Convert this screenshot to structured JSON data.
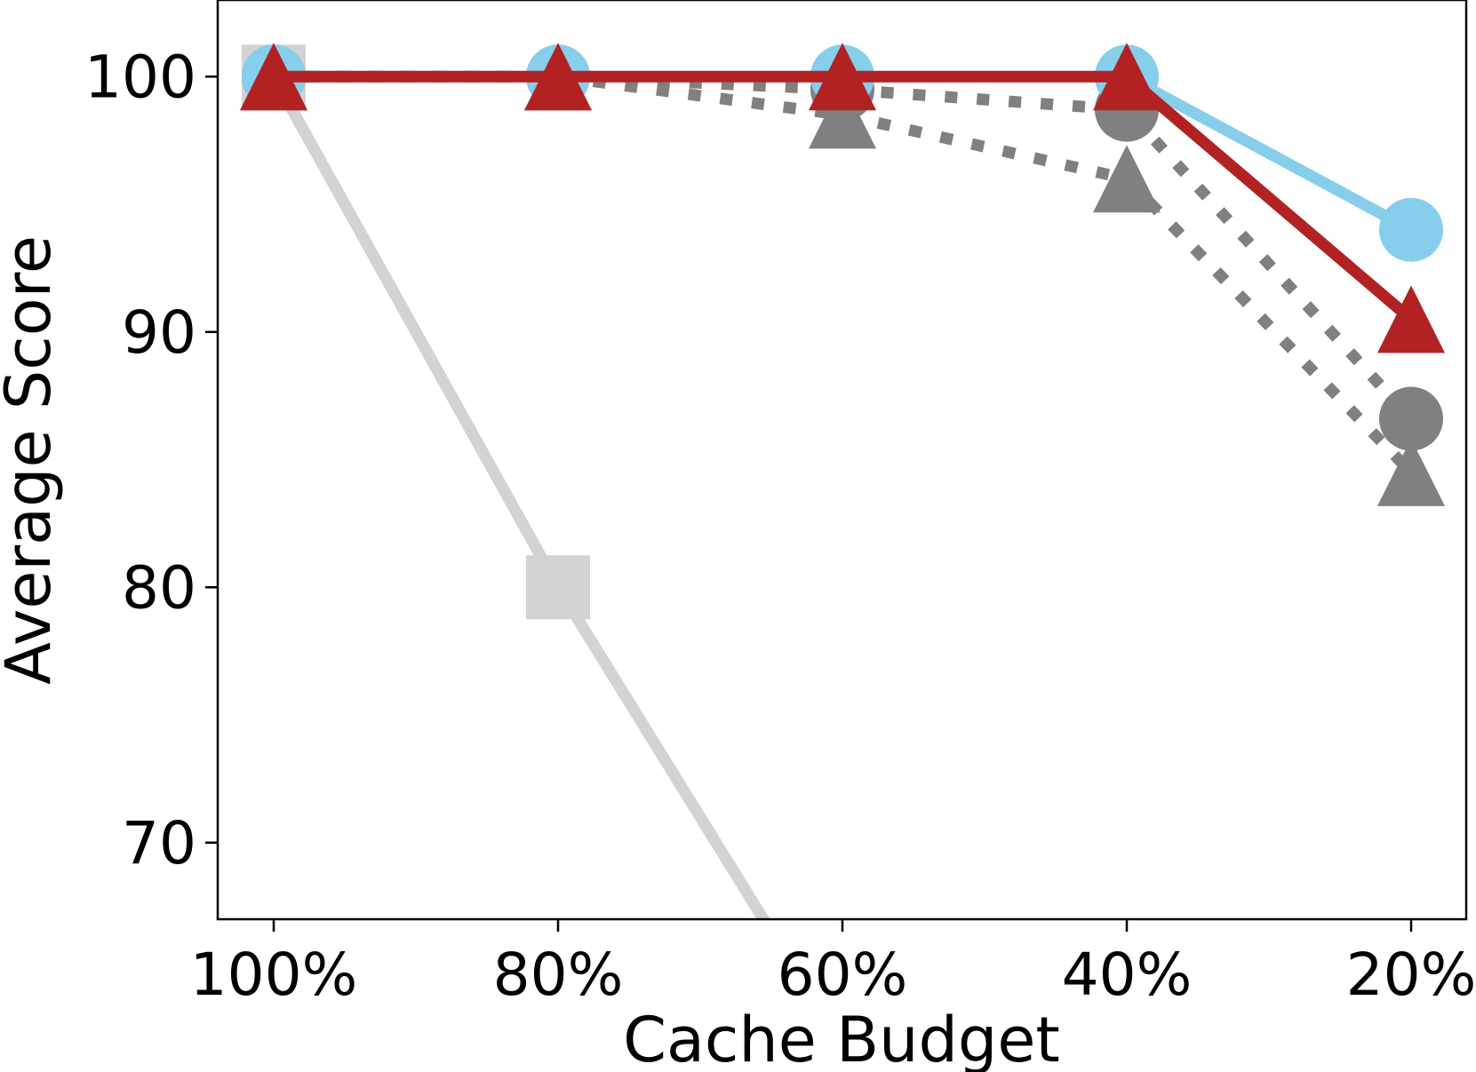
{
  "chart_data": {
    "type": "line",
    "title": "",
    "xlabel": "Cache Budget",
    "ylabel": "Average Score",
    "categories": [
      "100%",
      "80%",
      "60%",
      "40%",
      "20%"
    ],
    "ylim": [
      67,
      103
    ],
    "yticks": [
      70,
      80,
      90,
      100
    ],
    "grid": false,
    "legend": "none",
    "series": [
      {
        "values": [
          100,
          80,
          62,
          null,
          null
        ],
        "color": "#d3d3d3",
        "marker": "square",
        "linestyle": "solid"
      },
      {
        "values": [
          100,
          100,
          99.5,
          98.7,
          86.6
        ],
        "color": "#808080",
        "marker": "circle",
        "linestyle": "dotted"
      },
      {
        "values": [
          100,
          100,
          98.5,
          96.0,
          84.5
        ],
        "color": "#808080",
        "marker": "triangle",
        "linestyle": "dotted"
      },
      {
        "values": [
          100,
          100,
          100,
          100,
          94.0
        ],
        "color": "#87ceeb",
        "marker": "circle",
        "linestyle": "solid"
      },
      {
        "values": [
          100,
          100,
          100,
          100,
          90.5
        ],
        "color": "#b22222",
        "marker": "triangle",
        "linestyle": "solid"
      }
    ]
  }
}
